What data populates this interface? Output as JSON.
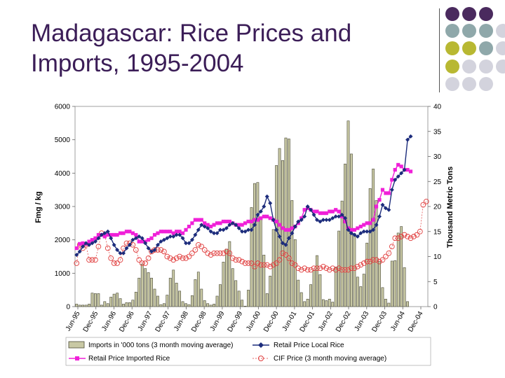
{
  "slide": {
    "title": "Madagascar: Rice Prices and Imports, 1995-2004",
    "decoration_colors": [
      "#4a2a5e",
      "#8fa8aa",
      "#b8b832",
      "#d3d3dd"
    ]
  },
  "chart_data": {
    "type": "bar+line",
    "title": "",
    "ylabel": "Fmg / kg",
    "y2label": "Thousand Metric Tons",
    "ylim": [
      0,
      6000
    ],
    "y2lim": [
      0,
      40
    ],
    "yticks": [
      "0",
      "1000",
      "2000",
      "3000",
      "4000",
      "5000",
      "6000"
    ],
    "y2ticks": [
      "0",
      "5",
      "10",
      "15",
      "20",
      "25",
      "30",
      "35",
      "40"
    ],
    "xticks": [
      "Jun-95",
      "Dec-95",
      "Jun-96",
      "Dec-96",
      "Jun-97",
      "Dec-97",
      "Jun-98",
      "Dec-98",
      "Jun-99",
      "Dec-99",
      "Jun-00",
      "Dec-00",
      "Jun-01",
      "Dec-01",
      "Jun-02",
      "Dec-02",
      "Jun-03",
      "Dec-03",
      "Jun-04",
      "Dec-04"
    ],
    "grid": false,
    "legend_position": "bottom",
    "colors": {
      "imports_fill": "#c8c8a4",
      "imports_stroke": "#4a4a38",
      "local": "#1c2c7c",
      "imported": "#f020d8",
      "cif": "#e03c3c"
    },
    "series": [
      {
        "name": "Imports in '000 tons (3 month moving average)",
        "axis": "right",
        "type": "bar",
        "values": [
          0.5,
          0.3,
          0.3,
          0.3,
          0.5,
          2.7,
          2.6,
          2.6,
          0.3,
          1.0,
          0.6,
          1.9,
          2.5,
          2.7,
          1.6,
          0.5,
          0.8,
          0.8,
          1.3,
          2.9,
          5.7,
          8.5,
          7.6,
          6.8,
          5.7,
          3.5,
          2.1,
          0.4,
          0.6,
          2.3,
          5.7,
          7.3,
          4.7,
          3.1,
          1.0,
          0.6,
          0.4,
          2.2,
          5.4,
          6.9,
          3.5,
          1.2,
          0.6,
          0.3,
          0.5,
          2.1,
          4.4,
          8.9,
          11.5,
          13.0,
          7.6,
          5.2,
          3.1,
          1.3,
          0.1,
          3.3,
          19.8,
          24.6,
          24.8,
          17.4,
          10.3,
          2.6,
          6.1,
          15.4,
          28.2,
          31.6,
          29.2,
          33.7,
          33.5,
          21.2,
          13.4,
          5.3,
          2.8,
          1.0,
          1.5,
          4.4,
          7.3,
          10.2,
          6.4,
          1.4,
          1.2,
          1.5,
          0.9,
          7.9,
          15.1,
          21.1,
          28.5,
          37.1,
          30.5,
          14.6,
          5.9,
          4.0,
          6.5,
          12.7,
          23.6,
          27.5,
          21.2,
          9.0,
          3.8,
          1.5,
          0.7,
          9.1,
          9.2,
          14.7,
          16.0,
          7.8,
          1.0
        ],
        "values_from_index": 0
      },
      {
        "name": "Retail Price Local Rice",
        "axis": "left",
        "type": "line",
        "values": [
          1550,
          1650,
          1800,
          1900,
          1850,
          1900,
          1950,
          2050,
          2150,
          2200,
          2250,
          2050,
          1850,
          1700,
          1600,
          1600,
          1750,
          1850,
          2000,
          2050,
          2100,
          2050,
          1900,
          1750,
          1650,
          1700,
          1850,
          1950,
          2000,
          2050,
          2100,
          2100,
          2150,
          2150,
          2050,
          1900,
          1900,
          2000,
          2150,
          2300,
          2450,
          2400,
          2350,
          2250,
          2200,
          2200,
          2300,
          2300,
          2350,
          2450,
          2500,
          2450,
          2350,
          2250,
          2250,
          2300,
          2300,
          2450,
          2750,
          2850,
          3000,
          3300,
          3100,
          2600,
          2300,
          2100,
          1900,
          1850,
          2050,
          2200,
          2400,
          2550,
          2600,
          2700,
          3000,
          2900,
          2750,
          2600,
          2550,
          2600,
          2600,
          2600,
          2650,
          2700,
          2700,
          2750,
          2650,
          2300,
          2200,
          2150,
          2100,
          2200,
          2250,
          2250,
          2250,
          2300,
          2450,
          2700,
          3050,
          2950,
          2900,
          3500,
          3800,
          3900,
          4000,
          4100,
          5000,
          5100
        ],
        "values_from_index": 0
      },
      {
        "name": "Retail Price Imported Rice",
        "axis": "left",
        "type": "line",
        "values": [
          1750,
          1880,
          1900,
          1880,
          1950,
          2000,
          2050,
          2150,
          2150,
          2100,
          2150,
          2150,
          2150,
          2150,
          2200,
          2200,
          2250,
          2250,
          2200,
          2150,
          1950,
          1950,
          1950,
          2000,
          2050,
          2150,
          2200,
          2250,
          2250,
          2250,
          2250,
          2200,
          2250,
          2250,
          2200,
          2300,
          2400,
          2500,
          2600,
          2600,
          2600,
          2500,
          2450,
          2400,
          2450,
          2500,
          2500,
          2550,
          2550,
          2550,
          2500,
          2450,
          2450,
          2450,
          2500,
          2550,
          2550,
          2600,
          2600,
          2650,
          2700,
          2700,
          2650,
          2600,
          2550,
          2450,
          2350,
          2300,
          2300,
          2350,
          2400,
          2500,
          2650,
          2900,
          2950,
          2900,
          2850,
          2850,
          2800,
          2800,
          2800,
          2850,
          2850,
          2900,
          2850,
          2700,
          2550,
          2350,
          2300,
          2300,
          2350,
          2400,
          2450,
          2500,
          2500,
          2600,
          3000,
          3200,
          3500,
          3400,
          3400,
          3800,
          4100,
          4250,
          4200,
          4100,
          4100,
          4050
        ],
        "values_from_index": 0
      },
      {
        "name": "CIF Price (3 month moving average)",
        "axis": "left",
        "type": "line",
        "values": [
          1300,
          1850,
          1750,
          1850,
          1400,
          1400,
          1400,
          1800,
          2200,
          2150,
          1750,
          1450,
          1300,
          1300,
          1400,
          1750,
          1900,
          1900,
          1850,
          1700,
          1400,
          1300,
          1300,
          1450,
          1650,
          1700,
          1700,
          1700,
          1650,
          1500,
          1450,
          1400,
          1450,
          1500,
          1450,
          1450,
          1500,
          1600,
          1700,
          1850,
          1800,
          1700,
          1600,
          1550,
          1600,
          1600,
          1600,
          1600,
          1650,
          1600,
          1450,
          1400,
          1400,
          1350,
          1300,
          1300,
          1300,
          1200,
          1300,
          1250,
          1250,
          1250,
          1200,
          1250,
          1300,
          1400,
          1600,
          1550,
          1450,
          1300,
          1250,
          1150,
          1100,
          1150,
          1100,
          1100,
          1150,
          1150,
          1150,
          1200,
          1150,
          1100,
          1150,
          1100,
          1150,
          1100,
          1100,
          1100,
          1150,
          1150,
          1200,
          1250,
          1300,
          1350,
          1350,
          1400,
          1400,
          1350,
          1400,
          1500,
          1600,
          1800,
          2050,
          2050,
          2100,
          2150,
          2100,
          2050,
          2100,
          2150,
          2250,
          3050,
          3150
        ],
        "values_from_index": 0
      }
    ]
  }
}
